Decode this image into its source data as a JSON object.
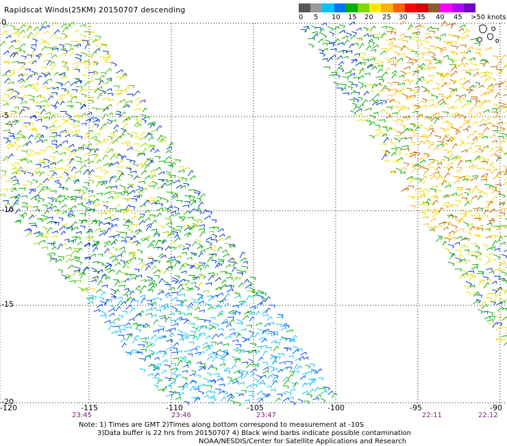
{
  "title": "Rapidscat Winds(25KM) 20150707 descending",
  "legend": {
    "colors": [
      "#555555",
      "#9a9a9a",
      "#00c4ff",
      "#0073ff",
      "#00b000",
      "#7fd800",
      "#ffe800",
      "#ffb200",
      "#ff6000",
      "#ff0000",
      "#d40000",
      "#8b5a2b",
      "#ff00ff",
      "#b000ff",
      "#7000c0"
    ],
    "labels": [
      "0",
      "5",
      "10",
      "15",
      "20",
      "25",
      "30",
      "35",
      "40",
      "45",
      ">50 knots"
    ]
  },
  "axes": {
    "y_labels": [
      "0",
      "-5",
      "-10",
      "-15",
      "-20"
    ],
    "x_labels": [
      "-120",
      "-115",
      "-110",
      "-105",
      "-100",
      "-95",
      "-90"
    ]
  },
  "times": [
    "23:45",
    "23:46",
    "23:47",
    "22:11",
    "22:12"
  ],
  "notes": [
    "Note: 1) Times are GMT 2)Times along bottom correspond to measurement at -10S",
    "3)Data buffer is 22 hrs from 20150707 4) Black wind barbs indicate possible contamination",
    "NOAA/NESDIS/Center for Satellite Applications and Research"
  ]
}
